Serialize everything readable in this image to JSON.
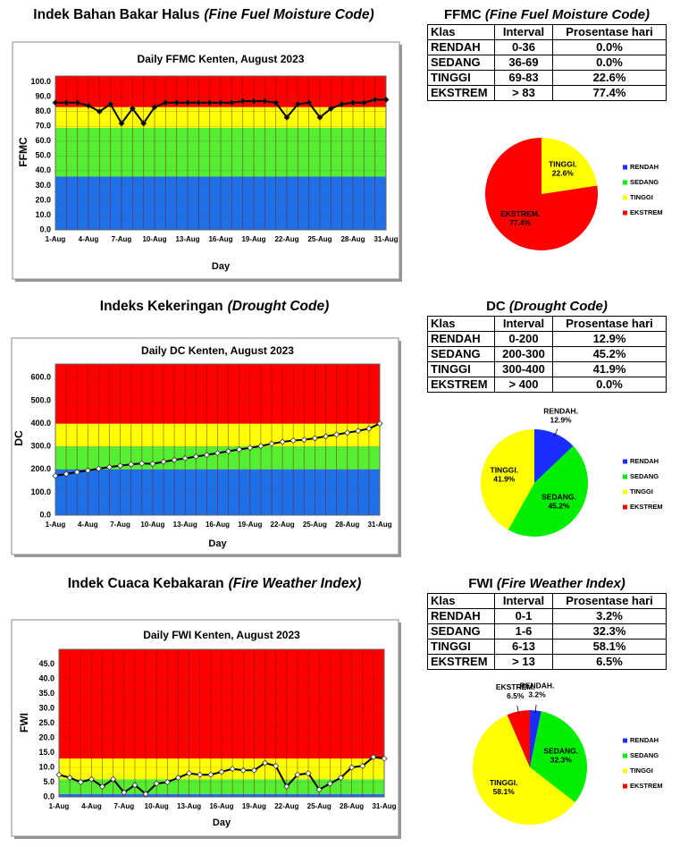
{
  "headings": [
    {
      "text": "Indek Bahan Bakar Halus",
      "italic": "(Fine Fuel Moisture Code)"
    },
    {
      "text": "Indeks Kekeringan",
      "italic": "(Drought Code)"
    },
    {
      "text": "Indek Cuaca Kebakaran",
      "italic": "(Fire Weather Index)"
    }
  ],
  "tables": [
    {
      "title": "FFMC",
      "italic": "(Fine Fuel Moisture Code)",
      "columns": [
        "Klas",
        "Interval",
        "Prosentase hari"
      ],
      "rows": [
        [
          "RENDAH",
          "0-36",
          "0.0%"
        ],
        [
          "SEDANG",
          "36-69",
          "0.0%"
        ],
        [
          "TINGGI",
          "69-83",
          "22.6%"
        ],
        [
          "EKSTREM",
          "> 83",
          "77.4%"
        ]
      ]
    },
    {
      "title": "DC",
      "italic": "(Drought Code)",
      "columns": [
        "Klas",
        "Interval",
        "Prosentase hari"
      ],
      "rows": [
        [
          "RENDAH",
          "0-200",
          "12.9%"
        ],
        [
          "SEDANG",
          "200-300",
          "45.2%"
        ],
        [
          "TINGGI",
          "300-400",
          "41.9%"
        ],
        [
          "EKSTREM",
          "> 400",
          "0.0%"
        ]
      ]
    },
    {
      "title": "FWI",
      "italic": "(Fire Weather Index)",
      "columns": [
        "Klas",
        "Interval",
        "Prosentase hari"
      ],
      "rows": [
        [
          "RENDAH",
          "0-1",
          "3.2%"
        ],
        [
          "SEDANG",
          "1-6",
          "32.3%"
        ],
        [
          "TINGGI",
          "6-13",
          "58.1%"
        ],
        [
          "EKSTREM",
          "> 13",
          "6.5%"
        ]
      ]
    }
  ],
  "chart_data": [
    {
      "type": "line",
      "title": "Daily FFMC Kenten,  August 2023",
      "xlabel": "Day",
      "ylabel": "FFMC",
      "categories": [
        "1-Aug",
        null,
        null,
        "4-Aug",
        null,
        null,
        "7-Aug",
        null,
        null,
        "10-Aug",
        null,
        null,
        "13-Aug",
        null,
        null,
        "16-Aug",
        null,
        null,
        "19-Aug",
        null,
        null,
        "22-Aug",
        null,
        null,
        "25-Aug",
        null,
        null,
        "28-Aug",
        null,
        null,
        "31-Aug"
      ],
      "values": [
        86,
        86,
        86,
        84,
        80,
        85,
        72,
        82,
        72,
        83,
        86,
        86,
        86,
        86,
        86,
        86,
        86,
        87,
        87,
        87,
        86,
        76,
        85,
        86,
        76,
        82,
        85,
        86,
        86,
        88,
        88
      ],
      "color": "#000000",
      "marker_fill": "#000000",
      "ylim": [
        0,
        104
      ],
      "yticks": [
        {
          "value": 0,
          "label": "0.0"
        },
        {
          "value": 10,
          "label": "10.0"
        },
        {
          "value": 20,
          "label": "20.0"
        },
        {
          "value": 30,
          "label": "30.0"
        },
        {
          "value": 40,
          "label": "40.0"
        },
        {
          "value": 50,
          "label": "50.0"
        },
        {
          "value": 60,
          "label": "60.0"
        },
        {
          "value": 70,
          "label": "70.0"
        },
        {
          "value": 80,
          "label": "80.0"
        },
        {
          "value": 90,
          "label": "90.0"
        },
        {
          "value": 100,
          "label": "100.0"
        }
      ],
      "bands": [
        {
          "from": 0,
          "to": 36,
          "color": "#1f6fe8"
        },
        {
          "from": 36,
          "to": 69,
          "color": "#55ee33"
        },
        {
          "from": 69,
          "to": 83,
          "color": "#ffff00"
        },
        {
          "from": 83,
          "to": 104,
          "color": "#ff0000"
        }
      ],
      "grid": true
    },
    {
      "type": "pie",
      "categories": [
        "RENDAH",
        "SEDANG",
        "TINGGI",
        "EKSTREM"
      ],
      "values": [
        0,
        0,
        22.6,
        77.4
      ],
      "labels": [
        null,
        null,
        "TINGGI.",
        "EKSTREM."
      ],
      "value_labels": [
        null,
        null,
        "22.6%",
        "77.4%"
      ],
      "colors": [
        "#1a2eff",
        "#00ee00",
        "#ffff00",
        "#ff0000"
      ],
      "legend": "right"
    },
    {
      "type": "line",
      "title": "Daily DC Kenten, August 2023",
      "xlabel": "Day",
      "ylabel": "DC",
      "categories": [
        "1-Aug",
        null,
        null,
        "4-Aug",
        null,
        null,
        "7-Aug",
        null,
        null,
        "10-Aug",
        null,
        null,
        "13-Aug",
        null,
        null,
        "16-Aug",
        null,
        null,
        "19-Aug",
        null,
        null,
        "22-Aug",
        null,
        null,
        "25-Aug",
        null,
        null,
        "28-Aug",
        null,
        null,
        "31-Aug"
      ],
      "values": [
        172,
        180,
        188,
        195,
        203,
        210,
        216,
        222,
        226,
        224,
        233,
        241,
        248,
        256,
        263,
        271,
        279,
        287,
        294,
        302,
        312,
        320,
        326,
        329,
        336,
        344,
        352,
        360,
        368,
        378,
        400
      ],
      "color": "#000000",
      "marker_fill": "#ffffff",
      "ylim": [
        0,
        660
      ],
      "yticks": [
        {
          "value": 0,
          "label": "0.0"
        },
        {
          "value": 100,
          "label": "100.0"
        },
        {
          "value": 200,
          "label": "200.0"
        },
        {
          "value": 300,
          "label": "300.0"
        },
        {
          "value": 400,
          "label": "400.0"
        },
        {
          "value": 500,
          "label": "500.0"
        },
        {
          "value": 600,
          "label": "600.0"
        }
      ],
      "bands": [
        {
          "from": 0,
          "to": 200,
          "color": "#1f6fe8"
        },
        {
          "from": 200,
          "to": 300,
          "color": "#55ee33"
        },
        {
          "from": 300,
          "to": 400,
          "color": "#ffff00"
        },
        {
          "from": 400,
          "to": 660,
          "color": "#ff0000"
        }
      ],
      "grid": true
    },
    {
      "type": "pie",
      "categories": [
        "RENDAH",
        "SEDANG",
        "TINGGI",
        "EKSTREM"
      ],
      "values": [
        12.9,
        45.2,
        41.9,
        0
      ],
      "labels": [
        "RENDAH.",
        "SEDANG.",
        "TINGGI.",
        null
      ],
      "value_labels": [
        "12.9%",
        "45.2%",
        "41.9%",
        null
      ],
      "colors": [
        "#1a2eff",
        "#00ee00",
        "#ffff00",
        "#ff0000"
      ],
      "legend": "right"
    },
    {
      "type": "line",
      "title": "Daily FWI Kenten, August 2023",
      "xlabel": "Day",
      "ylabel": "FWI",
      "categories": [
        "1-Aug",
        null,
        null,
        "4-Aug",
        null,
        null,
        "7-Aug",
        null,
        null,
        "10-Aug",
        null,
        null,
        "13-Aug",
        null,
        null,
        "16-Aug",
        null,
        null,
        "19-Aug",
        null,
        null,
        "22-Aug",
        null,
        null,
        "25-Aug",
        null,
        null,
        "28-Aug",
        null,
        null,
        "31-Aug"
      ],
      "values": [
        7.5,
        6.5,
        5,
        6,
        3.5,
        6,
        1.5,
        4,
        1,
        4.5,
        5,
        6.5,
        8,
        7.5,
        7.5,
        8.5,
        9.5,
        9,
        9,
        11.5,
        10.5,
        3.5,
        7.5,
        8,
        2.5,
        4.5,
        6.5,
        10,
        10.5,
        13.5,
        13
      ],
      "color": "#000000",
      "marker_fill": "#ffffff",
      "ylim": [
        0,
        50
      ],
      "yticks": [
        {
          "value": 0,
          "label": "0.0"
        },
        {
          "value": 5,
          "label": "5.0"
        },
        {
          "value": 10,
          "label": "10.0"
        },
        {
          "value": 15,
          "label": "15.0"
        },
        {
          "value": 20,
          "label": "20.0"
        },
        {
          "value": 25,
          "label": "25.0"
        },
        {
          "value": 30,
          "label": "30.0"
        },
        {
          "value": 35,
          "label": "35.0"
        },
        {
          "value": 40,
          "label": "40.0"
        },
        {
          "value": 45,
          "label": "45.0"
        }
      ],
      "bands": [
        {
          "from": 0,
          "to": 1,
          "color": "#1f6fe8"
        },
        {
          "from": 1,
          "to": 6,
          "color": "#55ee33"
        },
        {
          "from": 6,
          "to": 13,
          "color": "#ffff00"
        },
        {
          "from": 13,
          "to": 50,
          "color": "#ff0000"
        }
      ],
      "grid": true
    },
    {
      "type": "pie",
      "categories": [
        "RENDAH",
        "SEDANG",
        "TINGGI",
        "EKSTREM"
      ],
      "values": [
        3.2,
        32.3,
        58.1,
        6.5
      ],
      "labels": [
        "RENDAH.",
        "SEDANG.",
        "TINGGI.",
        "EKSTREM."
      ],
      "value_labels": [
        "3.2%",
        "32.3%",
        "58.1%",
        "6.5%"
      ],
      "colors": [
        "#1a2eff",
        "#00ee00",
        "#ffff00",
        "#ff0000"
      ],
      "legend": "right"
    }
  ]
}
